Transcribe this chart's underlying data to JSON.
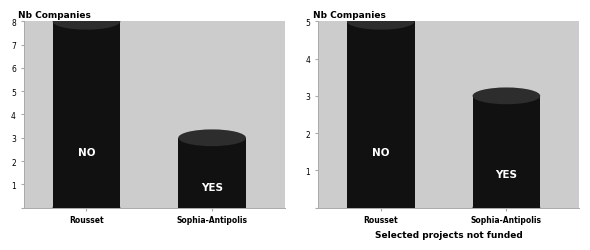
{
  "left_chart": {
    "title": "Nb Companies",
    "xlabel": "",
    "ylabel": "Nb Companies",
    "categories": [
      "Rousset",
      "Sophia-Antipolis"
    ],
    "values": [
      8,
      3
    ],
    "labels": [
      "NO",
      "YES"
    ],
    "ylim": [
      0,
      8
    ],
    "yticks": [
      0,
      1,
      2,
      3,
      4,
      5,
      6,
      7,
      8
    ]
  },
  "right_chart": {
    "title": "Nb Companies",
    "xlabel": "Selected projects not funded",
    "ylabel": "",
    "categories": [
      "Rousset",
      "Sophia-Antipolis"
    ],
    "values": [
      5,
      3
    ],
    "labels": [
      "NO",
      "YES"
    ],
    "ylim": [
      0,
      5
    ],
    "yticks": [
      0,
      1,
      2,
      3,
      4,
      5
    ]
  },
  "bar_color": "#111111",
  "bar_top_color": "#2d2d2d",
  "text_color": "white",
  "bg_color": "#f0f0f0",
  "wall_color": "#cccccc",
  "floor_color": "#d8d8d8",
  "fig_bg": "#ffffff",
  "font_size_label": 6.5,
  "font_size_title": 6.5,
  "font_size_axis": 5.5,
  "font_size_bar_label": 7.5
}
